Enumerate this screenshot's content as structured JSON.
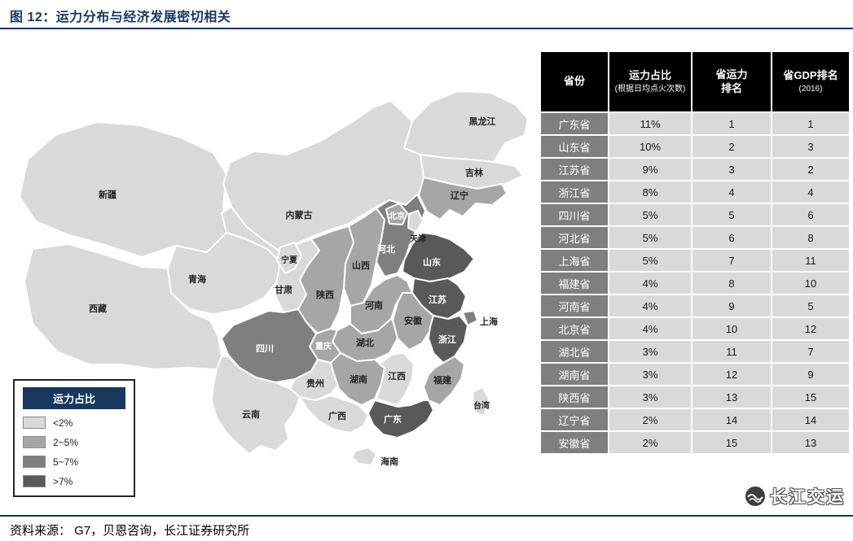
{
  "header": {
    "title": "图 12：运力分布与经济发展密切相关"
  },
  "colors": {
    "accent": "#17375E",
    "table_header_bg": "#000000",
    "table_first_col_bg": "#7f7f7f",
    "table_cell_bg": "#d9d9d9"
  },
  "map": {
    "legend": {
      "title": "运力占比",
      "items": [
        {
          "label": "<2%",
          "color": "#d9d9d9"
        },
        {
          "label": "2~5%",
          "color": "#a6a6a6"
        },
        {
          "label": "5~7%",
          "color": "#7f7f7f"
        },
        {
          "label": ">7%",
          "color": "#595959"
        }
      ]
    },
    "provinces": [
      {
        "name": "黑龙江",
        "category": "<2%"
      },
      {
        "name": "吉林",
        "category": "<2%"
      },
      {
        "name": "辽宁",
        "category": "2~5%"
      },
      {
        "name": "内蒙古",
        "category": "<2%"
      },
      {
        "name": "新疆",
        "category": "<2%"
      },
      {
        "name": "北京",
        "category": "2~5%"
      },
      {
        "name": "天津",
        "category": "<2%"
      },
      {
        "name": "河北",
        "category": "5~7%"
      },
      {
        "name": "宁夏",
        "category": "<2%"
      },
      {
        "name": "青海",
        "category": "<2%"
      },
      {
        "name": "甘肃",
        "category": "<2%"
      },
      {
        "name": "山西",
        "category": "2~5%"
      },
      {
        "name": "山东",
        "category": ">7%"
      },
      {
        "name": "西藏",
        "category": "<2%"
      },
      {
        "name": "陕西",
        "category": "2~5%"
      },
      {
        "name": "河南",
        "category": "2~5%"
      },
      {
        "name": "江苏",
        "category": ">7%"
      },
      {
        "name": "安徽",
        "category": "2~5%"
      },
      {
        "name": "上海",
        "category": "5~7%"
      },
      {
        "name": "四川",
        "category": "5~7%"
      },
      {
        "name": "重庆",
        "category": "2~5%"
      },
      {
        "name": "湖北",
        "category": "2~5%"
      },
      {
        "name": "浙江",
        "category": ">7%"
      },
      {
        "name": "湖南",
        "category": "2~5%"
      },
      {
        "name": "江西",
        "category": "<2%"
      },
      {
        "name": "福建",
        "category": "2~5%"
      },
      {
        "name": "贵州",
        "category": "<2%"
      },
      {
        "name": "云南",
        "category": "<2%"
      },
      {
        "name": "广西",
        "category": "<2%"
      },
      {
        "name": "广东",
        "category": ">7%"
      },
      {
        "name": "台湾",
        "category": "<2%"
      },
      {
        "name": "海南",
        "category": "<2%"
      }
    ]
  },
  "table": {
    "header": {
      "col1": "省份",
      "col2_main": "运力占比",
      "col2_sub": "(根据日均点火次数)",
      "col3_line1": "省运力",
      "col3_line2": "排名",
      "col4_main": "省GDP排名",
      "col4_sub": "(2016)"
    },
    "rows": [
      {
        "province": "广东省",
        "share": "11%",
        "capacity_rank": "1",
        "gdp_rank": "1"
      },
      {
        "province": "山东省",
        "share": "10%",
        "capacity_rank": "2",
        "gdp_rank": "3"
      },
      {
        "province": "江苏省",
        "share": "9%",
        "capacity_rank": "3",
        "gdp_rank": "2"
      },
      {
        "province": "浙江省",
        "share": "8%",
        "capacity_rank": "4",
        "gdp_rank": "4"
      },
      {
        "province": "四川省",
        "share": "5%",
        "capacity_rank": "5",
        "gdp_rank": "6"
      },
      {
        "province": "河北省",
        "share": "5%",
        "capacity_rank": "6",
        "gdp_rank": "8"
      },
      {
        "province": "上海省",
        "share": "5%",
        "capacity_rank": "7",
        "gdp_rank": "11"
      },
      {
        "province": "福建省",
        "share": "4%",
        "capacity_rank": "8",
        "gdp_rank": "10"
      },
      {
        "province": "河南省",
        "share": "4%",
        "capacity_rank": "9",
        "gdp_rank": "5"
      },
      {
        "province": "北京省",
        "share": "4%",
        "capacity_rank": "10",
        "gdp_rank": "12"
      },
      {
        "province": "湖北省",
        "share": "3%",
        "capacity_rank": "11",
        "gdp_rank": "7"
      },
      {
        "province": "湖南省",
        "share": "3%",
        "capacity_rank": "12",
        "gdp_rank": "9"
      },
      {
        "province": "陕西省",
        "share": "3%",
        "capacity_rank": "13",
        "gdp_rank": "15"
      },
      {
        "province": "辽宁省",
        "share": "2%",
        "capacity_rank": "14",
        "gdp_rank": "14"
      },
      {
        "province": "安徽省",
        "share": "2%",
        "capacity_rank": "15",
        "gdp_rank": "13"
      }
    ]
  },
  "footer": {
    "source": "资料来源： G7，贝恩咨询，长江证券研究所"
  },
  "watermark": {
    "label": "长江交运"
  },
  "chart_data": {
    "type": "table",
    "title": "运力分布与经济发展密切相关",
    "columns": [
      "省份",
      "运力占比(根据日均点火次数)",
      "省运力排名",
      "省GDP排名(2016)"
    ],
    "rows": [
      [
        "广东省",
        "11%",
        1,
        1
      ],
      [
        "山东省",
        "10%",
        2,
        3
      ],
      [
        "江苏省",
        "9%",
        3,
        2
      ],
      [
        "浙江省",
        "8%",
        4,
        4
      ],
      [
        "四川省",
        "5%",
        5,
        6
      ],
      [
        "河北省",
        "5%",
        6,
        8
      ],
      [
        "上海省",
        "5%",
        7,
        11
      ],
      [
        "福建省",
        "4%",
        8,
        10
      ],
      [
        "河南省",
        "4%",
        9,
        5
      ],
      [
        "北京省",
        "4%",
        10,
        12
      ],
      [
        "湖北省",
        "3%",
        11,
        7
      ],
      [
        "湖南省",
        "3%",
        12,
        9
      ],
      [
        "陕西省",
        "3%",
        13,
        15
      ],
      [
        "辽宁省",
        "2%",
        14,
        14
      ],
      [
        "安徽省",
        "2%",
        15,
        13
      ]
    ],
    "choropleth": {
      "legend_title": "运力占比",
      "bins": {
        "<2%": [
          "黑龙江",
          "吉林",
          "内蒙古",
          "新疆",
          "天津",
          "宁夏",
          "青海",
          "甘肃",
          "西藏",
          "江西",
          "贵州",
          "云南",
          "广西",
          "台湾",
          "海南"
        ],
        "2~5%": [
          "辽宁",
          "北京",
          "山西",
          "陕西",
          "河南",
          "安徽",
          "湖北",
          "重庆",
          "湖南",
          "福建"
        ],
        "5~7%": [
          "河北",
          "上海",
          "四川"
        ],
        ">7%": [
          "山东",
          "江苏",
          "浙江",
          "广东"
        ]
      }
    }
  }
}
